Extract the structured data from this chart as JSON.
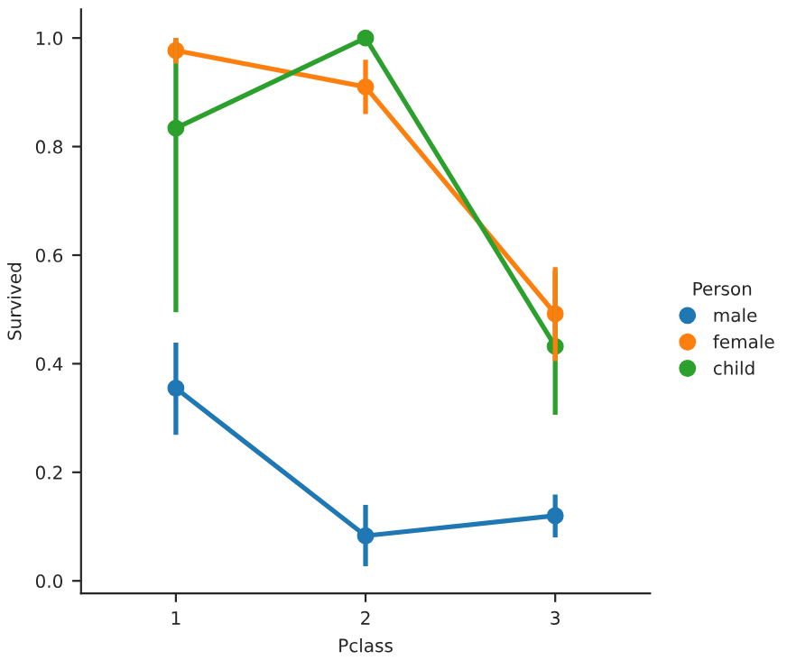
{
  "chart_data": {
    "type": "line",
    "xlabel": "Pclass",
    "ylabel": "Survived",
    "legend_title": "Person",
    "categories": [
      "1",
      "2",
      "3"
    ],
    "series": [
      {
        "name": "male",
        "color": "#1f77b4",
        "values": [
          0.355,
          0.083,
          0.12
        ],
        "errors": [
          [
            0.269,
            0.439
          ],
          [
            0.027,
            0.14
          ],
          [
            0.08,
            0.159
          ]
        ]
      },
      {
        "name": "female",
        "color": "#ff7f0e",
        "values": [
          0.977,
          0.91,
          0.492
        ],
        "errors": [
          [
            0.953,
            1.0
          ],
          [
            0.86,
            0.96
          ],
          [
            0.405,
            0.578
          ]
        ]
      },
      {
        "name": "child",
        "color": "#2ca02c",
        "values": [
          0.834,
          1.0,
          0.432
        ],
        "errors": [
          [
            0.495,
            1.0
          ],
          null,
          [
            0.306,
            0.571
          ]
        ]
      }
    ],
    "ylim": [
      -0.023,
      1.053
    ],
    "yticks": [
      {
        "value": 0,
        "label": "0.0"
      },
      0.2,
      0.4,
      0.6,
      0.8,
      {
        "value": 1,
        "label": "1.0"
      }
    ],
    "legend": "right",
    "marker": "circle",
    "line_style": "solid",
    "grid": false
  }
}
